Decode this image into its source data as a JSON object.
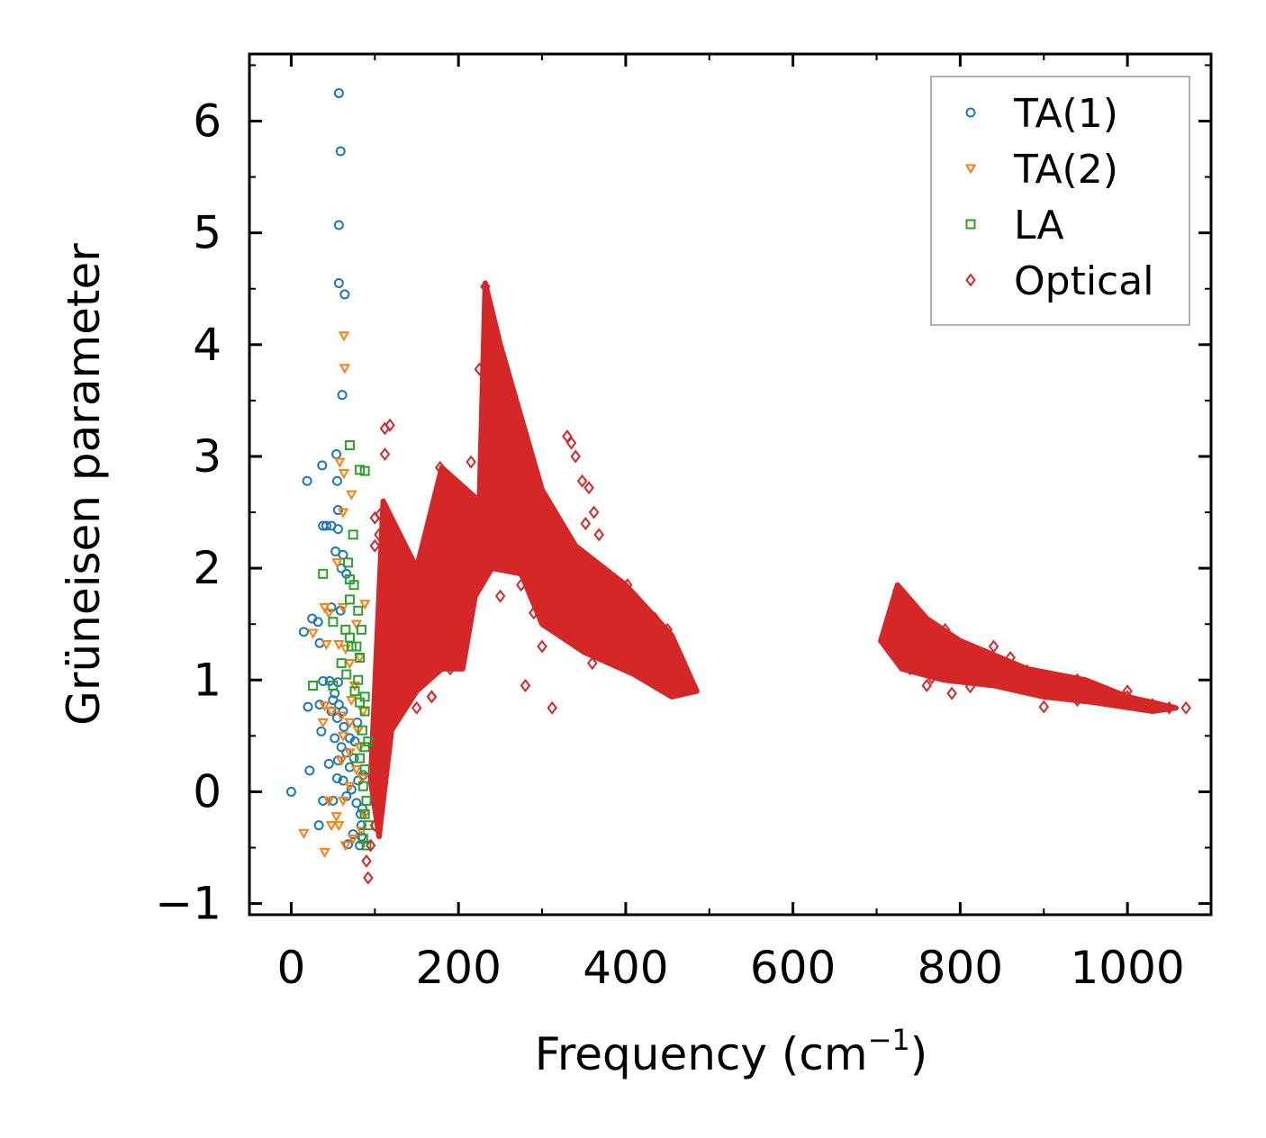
{
  "chart_data": {
    "type": "scatter",
    "xlabel": "Frequency (cm",
    "xlabel_sup": "−1",
    "xlabel_close": ")",
    "ylabel": "Grüneisen parameter",
    "xlim": [
      -50,
      1100
    ],
    "ylim": [
      -1.1,
      6.6
    ],
    "xticks": [
      {
        "value": 0,
        "label": "0"
      },
      {
        "value": 200,
        "label": "200"
      },
      {
        "value": 400,
        "label": "400"
      },
      {
        "value": 600,
        "label": "600"
      },
      {
        "value": 800,
        "label": "800"
      },
      {
        "value": 1000,
        "label": "1000"
      }
    ],
    "yticks": [
      {
        "value": -1,
        "label": "−1"
      },
      {
        "value": 0,
        "label": "0"
      },
      {
        "value": 1,
        "label": "1"
      },
      {
        "value": 2,
        "label": "2"
      },
      {
        "value": 3,
        "label": "3"
      },
      {
        "value": 4,
        "label": "4"
      },
      {
        "value": 5,
        "label": "5"
      },
      {
        "value": 6,
        "label": "6"
      }
    ],
    "legend_position": "top-right",
    "series": [
      {
        "name": "TA(1)",
        "marker": "circle",
        "color": "#1f77b4",
        "points": [
          [
            0,
            0
          ],
          [
            57,
            6.25
          ],
          [
            59,
            5.73
          ],
          [
            57,
            5.07
          ],
          [
            57,
            4.55
          ],
          [
            64,
            4.45
          ],
          [
            61,
            3.55
          ],
          [
            54,
            3.02
          ],
          [
            37,
            2.92
          ],
          [
            19,
            2.78
          ],
          [
            55,
            2.78
          ],
          [
            56,
            2.52
          ],
          [
            38,
            2.38
          ],
          [
            42,
            2.38
          ],
          [
            48,
            2.38
          ],
          [
            56,
            2.35
          ],
          [
            53,
            2.15
          ],
          [
            62,
            2.12
          ],
          [
            60,
            2.0
          ],
          [
            66,
            1.95
          ],
          [
            48,
            1.65
          ],
          [
            59,
            1.62
          ],
          [
            25,
            1.55
          ],
          [
            15,
            1.43
          ],
          [
            32,
            1.52
          ],
          [
            34,
            1.33
          ],
          [
            38,
            0.99
          ],
          [
            46,
            0.99
          ],
          [
            56,
            0.98
          ],
          [
            52,
            0.88
          ],
          [
            50,
            0.82
          ],
          [
            57,
            0.78
          ],
          [
            48,
            0.72
          ],
          [
            62,
            0.72
          ],
          [
            20,
            0.76
          ],
          [
            34,
            0.78
          ],
          [
            55,
            0.66
          ],
          [
            63,
            0.58
          ],
          [
            36,
            0.54
          ],
          [
            52,
            0.48
          ],
          [
            70,
            0.48
          ],
          [
            60,
            0.4
          ],
          [
            66,
            0.35
          ],
          [
            56,
            0.28
          ],
          [
            45,
            0.25
          ],
          [
            22,
            0.19
          ],
          [
            55,
            0.12
          ],
          [
            62,
            0.1
          ],
          [
            70,
            0.22
          ],
          [
            75,
            0.3
          ],
          [
            80,
            0.1
          ],
          [
            38,
            -0.08
          ],
          [
            50,
            -0.08
          ],
          [
            66,
            -0.04
          ],
          [
            72,
            0.02
          ],
          [
            78,
            -0.1
          ],
          [
            83,
            -0.2
          ],
          [
            84,
            -0.3
          ],
          [
            84,
            -0.4
          ],
          [
            33,
            -0.3
          ],
          [
            74,
            -0.38
          ],
          [
            68,
            -0.47
          ],
          [
            82,
            -0.48
          ],
          [
            79,
            0.62
          ],
          [
            76,
            0.45
          ],
          [
            86,
            0.15
          ],
          [
            85,
            -0.15
          ]
        ]
      },
      {
        "name": "TA(2)",
        "marker": "triangle-down",
        "color": "#ff7f0e",
        "points": [
          [
            63,
            4.08
          ],
          [
            64,
            3.79
          ],
          [
            58,
            2.95
          ],
          [
            63,
            2.85
          ],
          [
            72,
            2.66
          ],
          [
            62,
            2.5
          ],
          [
            55,
            2.05
          ],
          [
            40,
            1.65
          ],
          [
            62,
            1.65
          ],
          [
            45,
            1.6
          ],
          [
            26,
            1.42
          ],
          [
            42,
            1.32
          ],
          [
            57,
            1.32
          ],
          [
            65,
            1.28
          ],
          [
            70,
            1.15
          ],
          [
            82,
            1.2
          ],
          [
            76,
            0.95
          ],
          [
            72,
            0.82
          ],
          [
            40,
            0.77
          ],
          [
            48,
            0.72
          ],
          [
            60,
            0.68
          ],
          [
            70,
            0.62
          ],
          [
            38,
            0.62
          ],
          [
            80,
            0.55
          ],
          [
            62,
            0.5
          ],
          [
            82,
            0.4
          ],
          [
            70,
            0.35
          ],
          [
            60,
            0.28
          ],
          [
            78,
            0.2
          ],
          [
            85,
            0.12
          ],
          [
            70,
            0.05
          ],
          [
            62,
            -0.08
          ],
          [
            45,
            -0.08
          ],
          [
            54,
            -0.22
          ],
          [
            57,
            -0.3
          ],
          [
            48,
            -0.3
          ],
          [
            15,
            -0.37
          ],
          [
            40,
            -0.54
          ],
          [
            65,
            -0.48
          ],
          [
            74,
            -0.42
          ],
          [
            84,
            -0.35
          ],
          [
            88,
            -0.2
          ],
          [
            86,
            0.72
          ],
          [
            78,
            1.5
          ],
          [
            88,
            1.68
          ]
        ]
      },
      {
        "name": "LA",
        "marker": "square",
        "color": "#2ca02c",
        "points": [
          [
            70,
            3.1
          ],
          [
            82,
            2.88
          ],
          [
            88,
            2.87
          ],
          [
            74,
            2.3
          ],
          [
            68,
            2.05
          ],
          [
            38,
            1.95
          ],
          [
            70,
            1.9
          ],
          [
            75,
            1.85
          ],
          [
            80,
            1.62
          ],
          [
            70,
            1.72
          ],
          [
            50,
            1.52
          ],
          [
            65,
            1.45
          ],
          [
            70,
            1.38
          ],
          [
            72,
            1.3
          ],
          [
            78,
            1.3
          ],
          [
            82,
            1.2
          ],
          [
            60,
            1.15
          ],
          [
            66,
            1.05
          ],
          [
            26,
            0.95
          ],
          [
            50,
            0.95
          ],
          [
            76,
            0.9
          ],
          [
            82,
            0.8
          ],
          [
            88,
            0.72
          ],
          [
            85,
            0.55
          ],
          [
            88,
            0.4
          ],
          [
            82,
            0.3
          ],
          [
            88,
            0.2
          ],
          [
            86,
            0.05
          ],
          [
            90,
            -0.08
          ],
          [
            88,
            -0.2
          ],
          [
            92,
            -0.3
          ],
          [
            86,
            -0.42
          ],
          [
            90,
            -0.48
          ],
          [
            92,
            0.45
          ],
          [
            88,
            0.85
          ],
          [
            84,
            1.45
          ],
          [
            80,
            1.0
          ]
        ]
      },
      {
        "name": "Optical",
        "marker": "diamond",
        "color": "#d62728",
        "points": [
          [
            90,
            -0.62
          ],
          [
            92,
            -0.77
          ],
          [
            95,
            -0.48
          ],
          [
            100,
            -0.3
          ],
          [
            100,
            2.45
          ],
          [
            100,
            2.2
          ],
          [
            112,
            3.25
          ],
          [
            118,
            3.28
          ],
          [
            112,
            3.02
          ],
          [
            106,
            2.48
          ],
          [
            105,
            2.3
          ],
          [
            128,
            1.2
          ],
          [
            135,
            0.8
          ],
          [
            168,
            0.85
          ],
          [
            168,
            0.85
          ],
          [
            178,
            2.9
          ],
          [
            205,
            2.65
          ],
          [
            225,
            3.78
          ],
          [
            215,
            2.95
          ],
          [
            232,
            4.52
          ],
          [
            330,
            3.18
          ],
          [
            335,
            3.12
          ],
          [
            340,
            3.0
          ],
          [
            348,
            2.78
          ],
          [
            356,
            2.72
          ],
          [
            362,
            2.5
          ],
          [
            352,
            2.4
          ],
          [
            368,
            2.3
          ],
          [
            395,
            1.8
          ],
          [
            300,
            1.3
          ],
          [
            290,
            1.6
          ],
          [
            275,
            1.85
          ],
          [
            250,
            1.75
          ],
          [
            225,
            2.05
          ],
          [
            212,
            1.7
          ],
          [
            190,
            1.1
          ],
          [
            165,
            1.1
          ],
          [
            140,
            1.0
          ],
          [
            150,
            0.75
          ],
          [
            280,
            0.95
          ],
          [
            312,
            0.75
          ],
          [
            360,
            1.15
          ],
          [
            380,
            1.35
          ],
          [
            400,
            1.15
          ],
          [
            420,
            1.05
          ],
          [
            470,
            0.95
          ],
          [
            455,
            1.2
          ],
          [
            450,
            1.45
          ],
          [
            435,
            1.55
          ],
          [
            402,
            1.85
          ],
          [
            710,
            1.35
          ],
          [
            725,
            1.8
          ],
          [
            752,
            1.55
          ],
          [
            782,
            1.45
          ],
          [
            804,
            1.22
          ],
          [
            840,
            1.3
          ],
          [
            860,
            1.2
          ],
          [
            880,
            1.08
          ],
          [
            908,
            1.0
          ],
          [
            940,
            1.0
          ],
          [
            960,
            0.9
          ],
          [
            1000,
            0.85
          ],
          [
            1030,
            0.78
          ],
          [
            1050,
            0.75
          ],
          [
            766,
            1.02
          ],
          [
            790,
            0.88
          ],
          [
            812,
            0.94
          ],
          [
            900,
            0.76
          ],
          [
            940,
            0.82
          ],
          [
            1000,
            0.9
          ],
          [
            1070,
            0.75
          ],
          [
            760,
            0.95
          ],
          [
            740,
            1.1
          ],
          [
            820,
            1.05
          ],
          [
            860,
            1.05
          ]
        ]
      }
    ]
  }
}
